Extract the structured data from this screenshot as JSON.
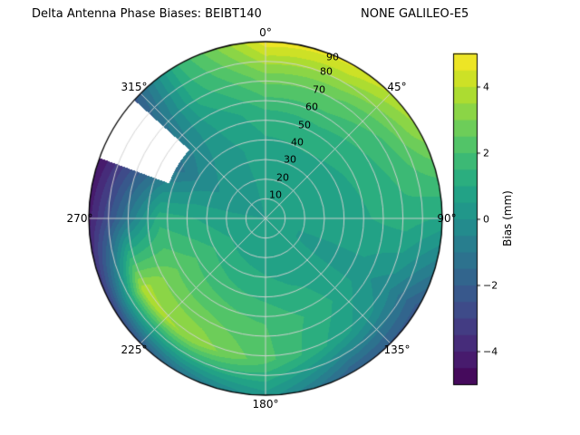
{
  "header": {
    "title_left": "Delta Antenna Phase Biases: BEIBT140",
    "title_right": "NONE GALILEO-E5"
  },
  "polar": {
    "azimuth_labels": [
      {
        "angle": 0,
        "text": "0°"
      },
      {
        "angle": 45,
        "text": "45°"
      },
      {
        "angle": 90,
        "text": "90°"
      },
      {
        "angle": 135,
        "text": "135°"
      },
      {
        "angle": 180,
        "text": "180°"
      },
      {
        "angle": 225,
        "text": "225°"
      },
      {
        "angle": 270,
        "text": "270°"
      },
      {
        "angle": 315,
        "text": "315°"
      }
    ],
    "elevation_ticks": [
      "10",
      "20",
      "30",
      "40",
      "50",
      "60",
      "70",
      "80",
      "90"
    ]
  },
  "colorbar": {
    "label": "Bias (mm)",
    "ticks": [
      "4",
      "2",
      "0",
      "−2",
      "−4"
    ],
    "tick_values": [
      4,
      2,
      0,
      -2,
      -4
    ],
    "vmin": -5,
    "vmax": 5
  },
  "chart_data": {
    "type": "heatmap",
    "projection": "polar",
    "title": "Delta Antenna Phase Biases: BEIBT140        NONE GALILEO-E5",
    "value_label": "Bias (mm)",
    "colormap": "viridis",
    "colormap_stops": [
      "#440154",
      "#482475",
      "#414487",
      "#355f8d",
      "#2a788e",
      "#21918c",
      "#22a884",
      "#44bf70",
      "#7ad151",
      "#bddf26",
      "#fde725"
    ],
    "vmin": -5,
    "vmax": 5,
    "contour_step_mm": 0.5,
    "radial_axis_ticks": [
      10,
      20,
      30,
      40,
      50,
      60,
      70,
      80,
      90
    ],
    "azimuth_deg": [
      0,
      30,
      60,
      90,
      120,
      150,
      180,
      210,
      240,
      270,
      300,
      330
    ],
    "radial_frac": [
      0,
      0.2,
      0.4,
      0.6,
      0.8,
      1.0
    ],
    "bias_mm": [
      [
        0.5,
        0.6,
        0.8,
        1.4,
        2.8,
        4.8
      ],
      [
        0.5,
        0.6,
        0.9,
        1.5,
        2.6,
        4.6
      ],
      [
        0.5,
        0.6,
        0.8,
        1.2,
        1.9,
        3.4
      ],
      [
        0.5,
        0.5,
        0.7,
        1.0,
        1.3,
        0.9
      ],
      [
        0.5,
        0.5,
        0.4,
        0.3,
        -0.4,
        -2.2
      ],
      [
        0.5,
        0.6,
        0.9,
        1.3,
        0.8,
        -2.0
      ],
      [
        0.5,
        0.7,
        1.2,
        2.0,
        2.2,
        0.3
      ],
      [
        0.5,
        0.8,
        1.5,
        2.4,
        3.4,
        -1.3
      ],
      [
        0.5,
        0.9,
        1.8,
        2.6,
        3.8,
        -3.0
      ],
      [
        0.5,
        0.6,
        1.0,
        1.3,
        -1.3,
        -4.2
      ],
      [
        0.5,
        0.3,
        -0.3,
        -1.4,
        -3.0,
        -4.7
      ],
      [
        0.5,
        0.4,
        0.3,
        0.5,
        1.2,
        1.5
      ]
    ],
    "no_data_region": {
      "azimuth_deg_range": [
        290,
        312
      ],
      "radial_frac_range": [
        0.58,
        1.0
      ]
    },
    "grid": "on",
    "legend_position": "right-colorbar"
  }
}
